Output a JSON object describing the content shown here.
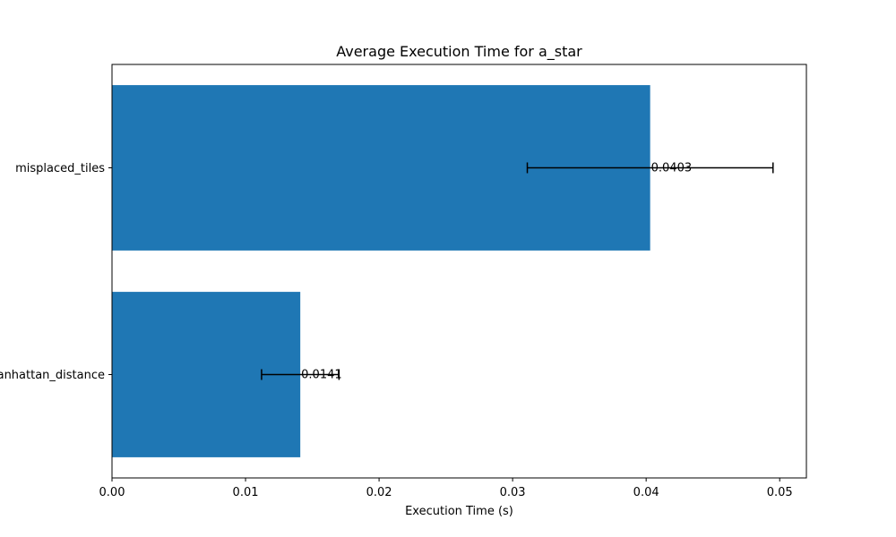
{
  "chart_data": {
    "type": "bar",
    "orientation": "horizontal",
    "title": "Average Execution Time for a_star",
    "xlabel": "Execution Time (s)",
    "ylabel": "",
    "xlim": [
      0,
      0.052
    ],
    "x_ticks": [
      0.0,
      0.01,
      0.02,
      0.03,
      0.04,
      0.05
    ],
    "x_tick_labels": [
      "0.00",
      "0.01",
      "0.02",
      "0.03",
      "0.04",
      "0.05"
    ],
    "categories": [
      "manhattan_distance",
      "misplaced_tiles"
    ],
    "values": [
      0.0141,
      0.0403
    ],
    "errors": [
      0.0029,
      0.0092
    ],
    "data_labels": [
      "0.0141",
      "0.0403"
    ],
    "grid": false,
    "colors": {
      "bar": "#1f77b4",
      "error_bar": "#000000",
      "axis": "#000000"
    }
  }
}
